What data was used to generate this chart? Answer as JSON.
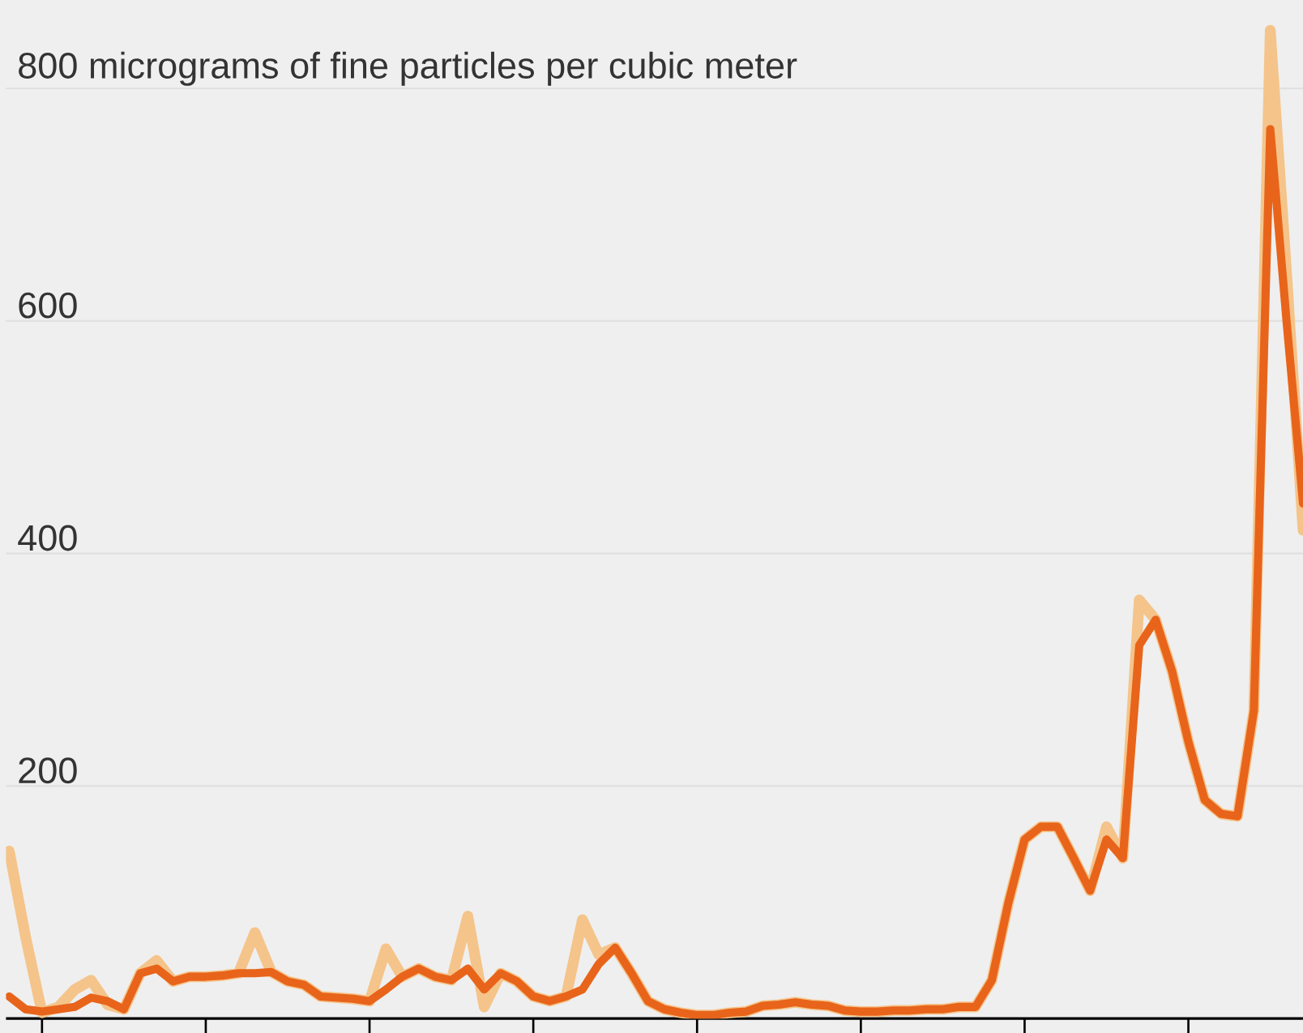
{
  "chart_data": {
    "type": "line",
    "categories": [
      null,
      null,
      null,
      null,
      null,
      null,
      null,
      null,
      null,
      null,
      null,
      null,
      null,
      null,
      null,
      null,
      null,
      null,
      null,
      null,
      null,
      null,
      null,
      null,
      null,
      null,
      null,
      null,
      null,
      null,
      null,
      null,
      null,
      null,
      null,
      null,
      null,
      null,
      null,
      null,
      null,
      null,
      null,
      null,
      null,
      null,
      null,
      null,
      null,
      null,
      null,
      null,
      null,
      null,
      null,
      null,
      null,
      null,
      null,
      null,
      null,
      null,
      null,
      null,
      null,
      null,
      null,
      null,
      null,
      null,
      null,
      null,
      null,
      null,
      null,
      null,
      null,
      null,
      null,
      null
    ],
    "series": [
      {
        "color": "#f5c48a",
        "values": [
          144,
          70,
          5,
          10,
          25,
          33,
          12,
          8,
          39,
          50,
          32,
          36,
          36,
          37,
          39,
          74,
          40,
          32,
          29,
          19,
          18,
          17,
          15,
          60,
          36,
          43,
          36,
          33,
          88,
          10,
          39,
          32,
          19,
          15,
          19,
          85,
          55,
          61,
          39,
          15,
          8,
          5,
          3,
          3,
          5,
          6,
          11,
          12,
          14,
          12,
          11,
          7,
          6,
          6,
          7,
          7,
          8,
          8,
          10,
          10,
          33,
          99,
          154,
          165,
          165,
          138,
          110,
          165,
          138,
          360,
          343,
          299,
          238,
          188,
          176,
          174,
          265,
          850,
          640,
          420
        ]
      },
      {
        "color": "#e8641a",
        "values": [
          19,
          8,
          6,
          8,
          10,
          18,
          15,
          8,
          39,
          43,
          32,
          36,
          36,
          37,
          39,
          39,
          40,
          32,
          29,
          19,
          18,
          17,
          15,
          25,
          36,
          43,
          36,
          33,
          43,
          25,
          39,
          32,
          19,
          15,
          19,
          25,
          47,
          61,
          39,
          15,
          8,
          5,
          3,
          3,
          5,
          6,
          11,
          12,
          14,
          12,
          11,
          7,
          6,
          6,
          7,
          7,
          8,
          8,
          10,
          10,
          33,
          99,
          154,
          165,
          165,
          138,
          110,
          154,
          138,
          321,
          343,
          299,
          238,
          188,
          176,
          174,
          265,
          765,
          599,
          443
        ]
      }
    ],
    "ylim": [
      0,
      876
    ],
    "yticks": [
      200,
      400,
      600,
      {
        "value": 800,
        "label": "800 micrograms of fine particles per cubic meter"
      }
    ],
    "grid": "y",
    "marker": "none",
    "line_style": "solid"
  }
}
